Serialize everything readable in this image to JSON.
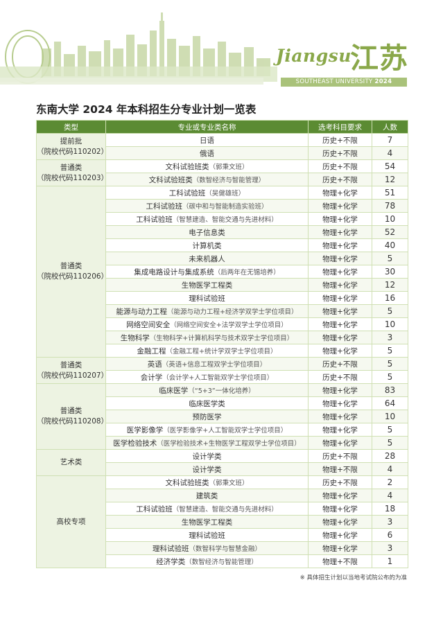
{
  "header": {
    "province_en": "Jiangsu",
    "province_cn": "江苏",
    "university_en": "SOUTHEAST UNIVERSITY",
    "year": "2024"
  },
  "title": "东南大学 2024 年本科招生分专业计划一览表",
  "table": {
    "headers": {
      "type": "类型",
      "major": "专业或专业类名称",
      "subject": "选考科目要求",
      "count": "人数"
    },
    "groups": [
      {
        "line1": "提前批",
        "line2": "（院校代码110202）",
        "rows": [
          {
            "major": "日语",
            "note": "",
            "subject": "历史+不限",
            "count": "7"
          },
          {
            "major": "俄语",
            "note": "",
            "subject": "历史+不限",
            "count": "4"
          }
        ]
      },
      {
        "line1": "普通类",
        "line2": "（院校代码110203）",
        "rows": [
          {
            "major": "文科试验班类",
            "note": "（郭秉文班）",
            "subject": "历史+不限",
            "count": "54"
          },
          {
            "major": "文科试验班类",
            "note": "（数智经济与智能管理）",
            "subject": "历史+不限",
            "count": "12"
          }
        ]
      },
      {
        "line1": "普通类",
        "line2": "（院校代码110206）",
        "rows": [
          {
            "major": "工科试验班",
            "note": "（吴健雄班）",
            "subject": "物理+化学",
            "count": "51"
          },
          {
            "major": "工科试验班",
            "note": "（碳中和与智能制造实验班）",
            "subject": "物理+化学",
            "count": "78"
          },
          {
            "major": "工科试验班",
            "note": "（智慧建造、智能交通与先进材料）",
            "subject": "物理+化学",
            "count": "10"
          },
          {
            "major": "电子信息类",
            "note": "",
            "subject": "物理+化学",
            "count": "52"
          },
          {
            "major": "计算机类",
            "note": "",
            "subject": "物理+化学",
            "count": "40"
          },
          {
            "major": "未来机器人",
            "note": "",
            "subject": "物理+化学",
            "count": "5"
          },
          {
            "major": "集成电路设计与集成系统",
            "note": "（后两年在无锡培养）",
            "subject": "物理+化学",
            "count": "30"
          },
          {
            "major": "生物医学工程类",
            "note": "",
            "subject": "物理+化学",
            "count": "12"
          },
          {
            "major": "理科试验班",
            "note": "",
            "subject": "物理+化学",
            "count": "16"
          },
          {
            "major": "能源与动力工程",
            "note": "（能源与动力工程+经济学双学士学位项目）",
            "subject": "物理+化学",
            "count": "5"
          },
          {
            "major": "网络空间安全",
            "note": "（网络空间安全+法学双学士学位项目）",
            "subject": "物理+化学",
            "count": "10"
          },
          {
            "major": "生物科学",
            "note": "（生物科学+计算机科学与技术双学士学位项目）",
            "subject": "物理+化学",
            "count": "3"
          },
          {
            "major": "金融工程",
            "note": "（金融工程+统计学双学士学位项目）",
            "subject": "物理+化学",
            "count": "5"
          }
        ]
      },
      {
        "line1": "普通类",
        "line2": "（院校代码110207）",
        "rows": [
          {
            "major": "英语",
            "note": "（英语+信息工程双学士学位项目）",
            "subject": "历史+不限",
            "count": "5"
          },
          {
            "major": "会计学",
            "note": "（会计学+人工智能双学士学位项目）",
            "subject": "历史+不限",
            "count": "5"
          }
        ]
      },
      {
        "line1": "普通类",
        "line2": "（院校代码110208）",
        "rows": [
          {
            "major": "临床医学",
            "note": "（“5+3”一体化培养）",
            "subject": "物理+化学",
            "count": "83"
          },
          {
            "major": "临床医学类",
            "note": "",
            "subject": "物理+化学",
            "count": "64"
          },
          {
            "major": "预防医学",
            "note": "",
            "subject": "物理+化学",
            "count": "10"
          },
          {
            "major": "医学影像学",
            "note": "（医学影像学+人工智能双学士学位项目）",
            "subject": "物理+化学",
            "count": "5"
          },
          {
            "major": "医学检验技术",
            "note": "（医学检验技术+生物医学工程双学士学位项目）",
            "subject": "物理+化学",
            "count": "5"
          }
        ]
      },
      {
        "line1": "艺术类",
        "line2": "",
        "rows": [
          {
            "major": "设计学类",
            "note": "",
            "subject": "历史+不限",
            "count": "28"
          },
          {
            "major": "设计学类",
            "note": "",
            "subject": "物理+不限",
            "count": "4"
          }
        ]
      },
      {
        "line1": "高校专项",
        "line2": "",
        "rows": [
          {
            "major": "文科试验班类",
            "note": "（郭秉文班）",
            "subject": "历史+不限",
            "count": "2"
          },
          {
            "major": "建筑类",
            "note": "",
            "subject": "物理+化学",
            "count": "4"
          },
          {
            "major": "工科试验班",
            "note": "（智慧建造、智能交通与先进材料）",
            "subject": "物理+化学",
            "count": "18"
          },
          {
            "major": "生物医学工程类",
            "note": "",
            "subject": "物理+化学",
            "count": "3"
          },
          {
            "major": "理科试验班",
            "note": "",
            "subject": "物理+化学",
            "count": "6"
          },
          {
            "major": "理科试验班",
            "note": "（数智科学与智慧金融）",
            "subject": "物理+化学",
            "count": "3"
          },
          {
            "major": "经济学类",
            "note": "（数智经济与智能管理）",
            "subject": "物理+不限",
            "count": "1"
          }
        ]
      }
    ]
  },
  "footnote": "※ 具体招生计划以当地考试院公布的为准",
  "colors": {
    "header_bg": "#5b8b33",
    "accent": "#8aa84a",
    "category_bg": "#edf3e2",
    "border": "#cfe0b3"
  }
}
